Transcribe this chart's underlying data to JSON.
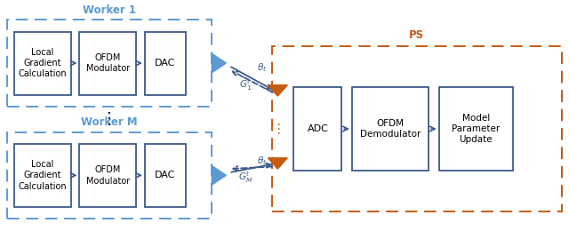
{
  "fig_width": 6.4,
  "fig_height": 2.78,
  "dpi": 100,
  "bg_color": "#ffffff",
  "worker_color": "#5b9bd5",
  "ps_color": "#c55a11",
  "block_edge_color": "#3b5a8a",
  "block_face_color": "#ffffff",
  "arrow_color": "#3b5a8a",
  "worker1_label": "Worker 1",
  "workerM_label": "Worker M",
  "ps_label": "PS",
  "blocks_worker": [
    "Local\nGradient\nCalculation",
    "OFDM\nModulator",
    "DAC"
  ],
  "blocks_ps": [
    "ADC",
    "OFDM\nDemodulator",
    "Model\nParameter\nUpdate"
  ],
  "xlim": [
    0,
    10
  ],
  "ylim": [
    0,
    4.6
  ]
}
